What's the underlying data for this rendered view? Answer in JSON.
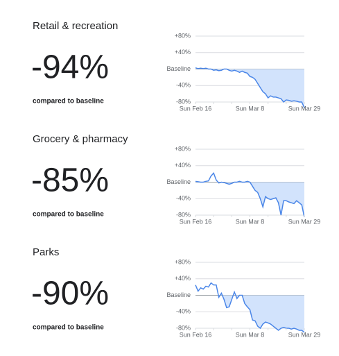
{
  "chart_data": [
    {
      "type": "line",
      "title": "Retail & recreation",
      "stat": {
        "value": -94,
        "label": "-94%"
      },
      "subtitle": "compared to baseline",
      "categories": [
        "Sun Feb 16",
        null,
        null,
        null,
        null,
        null,
        null,
        null,
        null,
        null,
        null,
        null,
        null,
        null,
        null,
        null,
        null,
        null,
        null,
        null,
        null,
        "Sun Mar 8",
        null,
        null,
        null,
        null,
        null,
        null,
        null,
        null,
        null,
        null,
        null,
        null,
        null,
        null,
        null,
        null,
        null,
        null,
        null,
        null,
        "Sun Mar 29"
      ],
      "values": [
        3,
        1,
        2,
        1,
        2,
        0,
        0,
        -3,
        -2,
        -4,
        -3,
        0,
        0,
        -3,
        -5,
        -3,
        -5,
        -8,
        -5,
        -8,
        -10,
        -18,
        -20,
        -25,
        -35,
        -45,
        -55,
        -60,
        -70,
        -65,
        -68,
        -68,
        -70,
        -72,
        -80,
        -75,
        -76,
        -78,
        -77,
        -78,
        -80,
        -80,
        -94
      ],
      "color": "#4a86e8",
      "area_color": "#d2e3fc",
      "ylim": [
        -80,
        80
      ],
      "yticks": [
        {
          "value": 80,
          "label": "+80%"
        },
        {
          "value": 40,
          "label": "+40%"
        },
        {
          "value": 0,
          "label": "Baseline"
        },
        {
          "value": -40,
          "label": "-40%"
        },
        {
          "value": -80,
          "label": "-80%"
        }
      ],
      "grid": true
    },
    {
      "type": "line",
      "title": "Grocery & pharmacy",
      "stat": {
        "value": -85,
        "label": "-85%"
      },
      "subtitle": "compared to baseline",
      "categories": [
        "Sun Feb 16",
        null,
        null,
        null,
        null,
        null,
        null,
        null,
        null,
        null,
        null,
        null,
        null,
        null,
        null,
        null,
        null,
        null,
        null,
        null,
        null,
        "Sun Mar 8",
        null,
        null,
        null,
        null,
        null,
        null,
        null,
        null,
        null,
        null,
        null,
        null,
        null,
        null,
        null,
        null,
        null,
        null,
        null,
        null,
        "Sun Mar 29"
      ],
      "values": [
        2,
        1,
        0,
        0,
        2,
        3,
        15,
        22,
        5,
        -2,
        0,
        -1,
        -3,
        -5,
        -3,
        0,
        0,
        2,
        0,
        0,
        2,
        0,
        -10,
        -20,
        -25,
        -40,
        -60,
        -35,
        -40,
        -42,
        -40,
        -38,
        -50,
        -80,
        -45,
        -45,
        -48,
        -50,
        -52,
        -45,
        -50,
        -55,
        -85
      ],
      "color": "#4a86e8",
      "area_color": "#d2e3fc",
      "ylim": [
        -80,
        80
      ],
      "yticks": [
        {
          "value": 80,
          "label": "+80%"
        },
        {
          "value": 40,
          "label": "+40%"
        },
        {
          "value": 0,
          "label": "Baseline"
        },
        {
          "value": -40,
          "label": "-40%"
        },
        {
          "value": -80,
          "label": "-80%"
        }
      ],
      "grid": true
    },
    {
      "type": "line",
      "title": "Parks",
      "stat": {
        "value": -90,
        "label": "-90%"
      },
      "subtitle": "compared to baseline",
      "categories": [
        "Sun Feb 16",
        null,
        null,
        null,
        null,
        null,
        null,
        null,
        null,
        null,
        null,
        null,
        null,
        null,
        null,
        null,
        null,
        null,
        null,
        null,
        null,
        "Sun Mar 8",
        null,
        null,
        null,
        null,
        null,
        null,
        null,
        null,
        null,
        null,
        null,
        null,
        null,
        null,
        null,
        null,
        null,
        null,
        null,
        null,
        "Sun Mar 29"
      ],
      "values": [
        25,
        10,
        18,
        15,
        22,
        20,
        30,
        25,
        25,
        -5,
        5,
        -10,
        -30,
        -28,
        -10,
        8,
        -8,
        0,
        0,
        -20,
        -28,
        -35,
        -60,
        -62,
        -75,
        -80,
        -70,
        -65,
        -67,
        -70,
        -75,
        -80,
        -85,
        -80,
        -78,
        -80,
        -80,
        -82,
        -80,
        -82,
        -85,
        -85,
        -90
      ],
      "color": "#4a86e8",
      "area_color": "#d2e3fc",
      "ylim": [
        -80,
        80
      ],
      "yticks": [
        {
          "value": 80,
          "label": "+80%"
        },
        {
          "value": 40,
          "label": "+40%"
        },
        {
          "value": 0,
          "label": "Baseline"
        },
        {
          "value": -40,
          "label": "-40%"
        },
        {
          "value": -80,
          "label": "-80%"
        }
      ],
      "grid": true
    }
  ]
}
